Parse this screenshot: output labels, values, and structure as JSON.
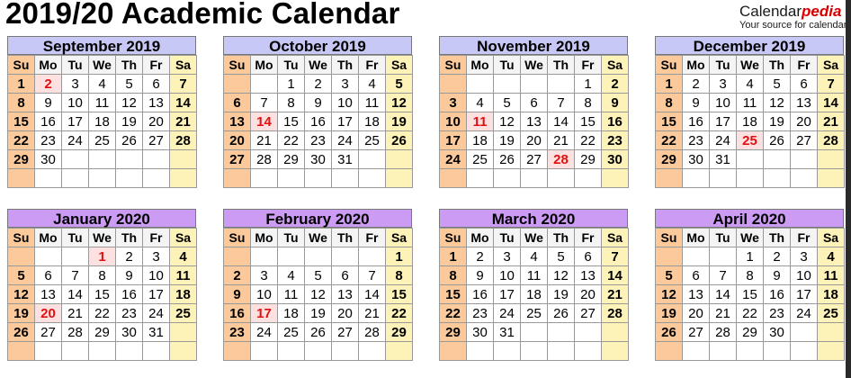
{
  "title": "2019/20 Academic Calendar",
  "brand": {
    "name_plain": "Calendar",
    "name_accent": "pedia",
    "tagline": "Your source for calendars"
  },
  "colors": {
    "sunday": "#fbc99a",
    "saturday": "#fdf3b8",
    "holiday_text": "#e01010",
    "holiday_bg": "#fde0e0",
    "header_row1": "#c8c8f6",
    "header_row2": "#cc9cf4"
  },
  "weekdays": [
    "Su",
    "Mo",
    "Tu",
    "We",
    "Th",
    "Fr",
    "Sa"
  ],
  "months": [
    {
      "name": "September 2019",
      "start": 0,
      "days": 30,
      "holidays": [
        2
      ]
    },
    {
      "name": "October 2019",
      "start": 2,
      "days": 31,
      "holidays": [
        14
      ]
    },
    {
      "name": "November 2019",
      "start": 5,
      "days": 30,
      "holidays": [
        11,
        28
      ]
    },
    {
      "name": "December 2019",
      "start": 0,
      "days": 31,
      "holidays": [
        25
      ]
    },
    {
      "name": "January 2020",
      "start": 3,
      "days": 31,
      "holidays": [
        1,
        20
      ]
    },
    {
      "name": "February 2020",
      "start": 6,
      "days": 29,
      "holidays": [
        17
      ]
    },
    {
      "name": "March 2020",
      "start": 0,
      "days": 31,
      "holidays": []
    },
    {
      "name": "April 2020",
      "start": 3,
      "days": 30,
      "holidays": []
    }
  ]
}
